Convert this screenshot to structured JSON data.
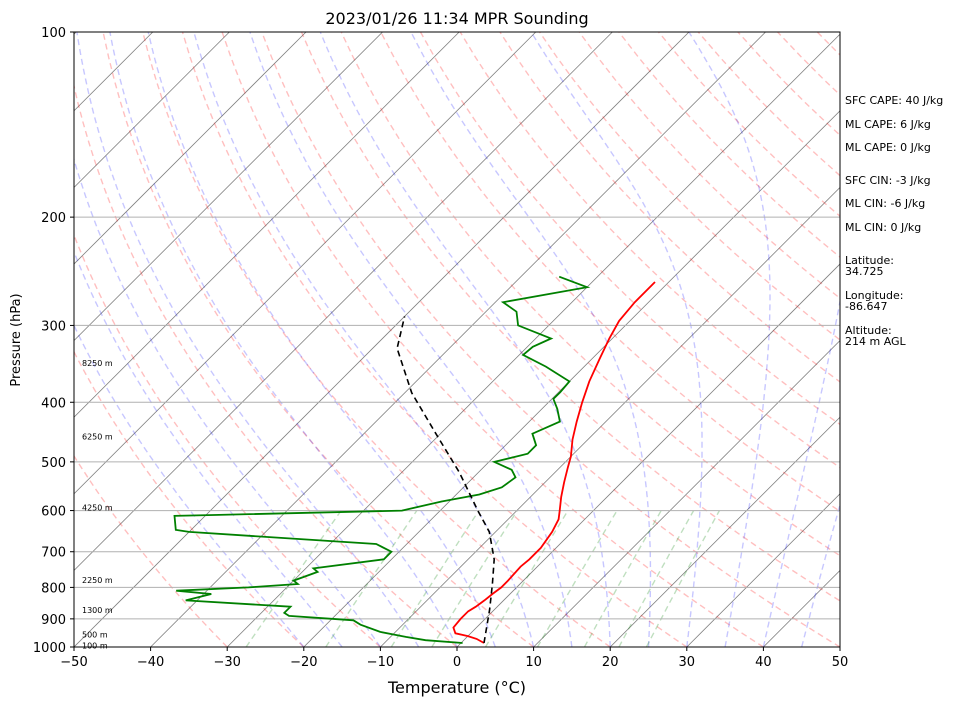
{
  "chart_data": {
    "type": "line",
    "title": "2023/01/26 11:34 MPR Sounding",
    "xlabel": "Temperature (°C)",
    "ylabel": "Pressure (hPa)",
    "xlim": [
      -50,
      50
    ],
    "ylim": [
      1000,
      100
    ],
    "yscale": "log",
    "x_ticks": [
      -50,
      -40,
      -30,
      -20,
      -10,
      0,
      10,
      20,
      30,
      40,
      50
    ],
    "y_ticks": [
      100,
      200,
      300,
      400,
      500,
      600,
      700,
      800,
      900,
      1000
    ],
    "grid": true,
    "series": [
      {
        "key": "temperature",
        "color": "#ff0000",
        "points": [
          [
            3.0,
            985
          ],
          [
            1.5,
            970
          ],
          [
            0,
            960
          ],
          [
            -2,
            950
          ],
          [
            -3,
            930
          ],
          [
            -3.2,
            900
          ],
          [
            -3.2,
            875
          ],
          [
            -2.8,
            860
          ],
          [
            -2.5,
            840
          ],
          [
            -2.3,
            820
          ],
          [
            -2.0,
            800
          ],
          [
            -2.0,
            780
          ],
          [
            -2.2,
            740
          ],
          [
            -2.0,
            720
          ],
          [
            -2.0,
            690
          ],
          [
            -2.6,
            650
          ],
          [
            -3.4,
            620
          ],
          [
            -4.4,
            600
          ],
          [
            -6.0,
            570
          ],
          [
            -7.5,
            540
          ],
          [
            -9.0,
            510
          ],
          [
            -10,
            490
          ],
          [
            -12.0,
            460
          ],
          [
            -13.8,
            430
          ],
          [
            -15.6,
            400
          ],
          [
            -17.4,
            370
          ],
          [
            -19.0,
            340
          ],
          [
            -20.4,
            315
          ],
          [
            -21.4,
            295
          ],
          [
            -21.8,
            275
          ],
          [
            -21.8,
            255
          ]
        ]
      },
      {
        "key": "dewpoint",
        "color": "#008000",
        "points": [
          [
            0.2,
            985
          ],
          [
            -5,
            975
          ],
          [
            -8,
            963
          ],
          [
            -12,
            945
          ],
          [
            -15.5,
            920
          ],
          [
            -17,
            905
          ],
          [
            -26,
            890
          ],
          [
            -27,
            880
          ],
          [
            -27,
            860
          ],
          [
            -41.5,
            840
          ],
          [
            -39,
            820
          ],
          [
            -44,
            810
          ],
          [
            -35,
            800
          ],
          [
            -29,
            790
          ],
          [
            -30,
            780
          ],
          [
            -28,
            755
          ],
          [
            -29,
            745
          ],
          [
            -21,
            720
          ],
          [
            -21,
            700
          ],
          [
            -24,
            680
          ],
          [
            -50,
            650
          ],
          [
            -52,
            645
          ],
          [
            -54,
            612
          ],
          [
            -49,
            610
          ],
          [
            -25,
            600
          ],
          [
            -21,
            580
          ],
          [
            -17,
            565
          ],
          [
            -15,
            550
          ],
          [
            -14.5,
            530
          ],
          [
            -16,
            515
          ],
          [
            -19.3,
            500
          ],
          [
            -16,
            485
          ],
          [
            -16,
            470
          ],
          [
            -18,
            450
          ],
          [
            -16,
            430
          ],
          [
            -18,
            410
          ],
          [
            -19.8,
            395
          ],
          [
            -19.8,
            385
          ],
          [
            -20,
            370
          ],
          [
            -25,
            350
          ],
          [
            -29.5,
            335
          ],
          [
            -29.3,
            325
          ],
          [
            -28,
            315
          ],
          [
            -34,
            300
          ],
          [
            -36,
            285
          ],
          [
            -39,
            275
          ],
          [
            -30,
            260
          ],
          [
            -35,
            250
          ]
        ]
      },
      {
        "key": "parcel",
        "color": "#000000",
        "points": [
          [
            3.0,
            985
          ],
          [
            -0.6,
            870
          ],
          [
            -3.6,
            790
          ],
          [
            -6.6,
            720
          ],
          [
            -10.8,
            650
          ],
          [
            -15.1,
            600
          ],
          [
            -22.5,
            520
          ],
          [
            -30.6,
            450
          ],
          [
            -39.1,
            386
          ],
          [
            -46.8,
            327
          ],
          [
            -50,
            290
          ]
        ]
      }
    ],
    "height_labels": [
      {
        "text": "8250 m",
        "p": 345
      },
      {
        "text": "6250 m",
        "p": 455
      },
      {
        "text": "4250 m",
        "p": 593
      },
      {
        "text": "2250 m",
        "p": 778
      },
      {
        "text": "1300 m",
        "p": 870
      },
      {
        "text": "500 m",
        "p": 955
      },
      {
        "text": "100 m",
        "p": 995
      }
    ]
  },
  "info": {
    "sfc_cape": "SFC CAPE: 40 J/kg",
    "ml_cape_1": "ML CAPE: 6 J/kg",
    "ml_cape_2": "ML CAPE: 0 J/kg",
    "sfc_cin": "SFC CIN: -3 J/kg",
    "ml_cin_1": "ML CIN: -6 J/kg",
    "ml_cin_2": "ML CIN: 0 J/kg",
    "latitude_label": "Latitude:",
    "latitude": "34.725",
    "longitude_label": "Longitude:",
    "longitude": "-86.647",
    "altitude_label": "Altitude:",
    "altitude": "214 m AGL"
  },
  "colors": {
    "dry_adiabat": "#ff0000",
    "moist_adiabat": "#0000ff",
    "mixing_ratio": "#008000",
    "isotherm": "#808080",
    "grid": "#b0b0b0"
  }
}
